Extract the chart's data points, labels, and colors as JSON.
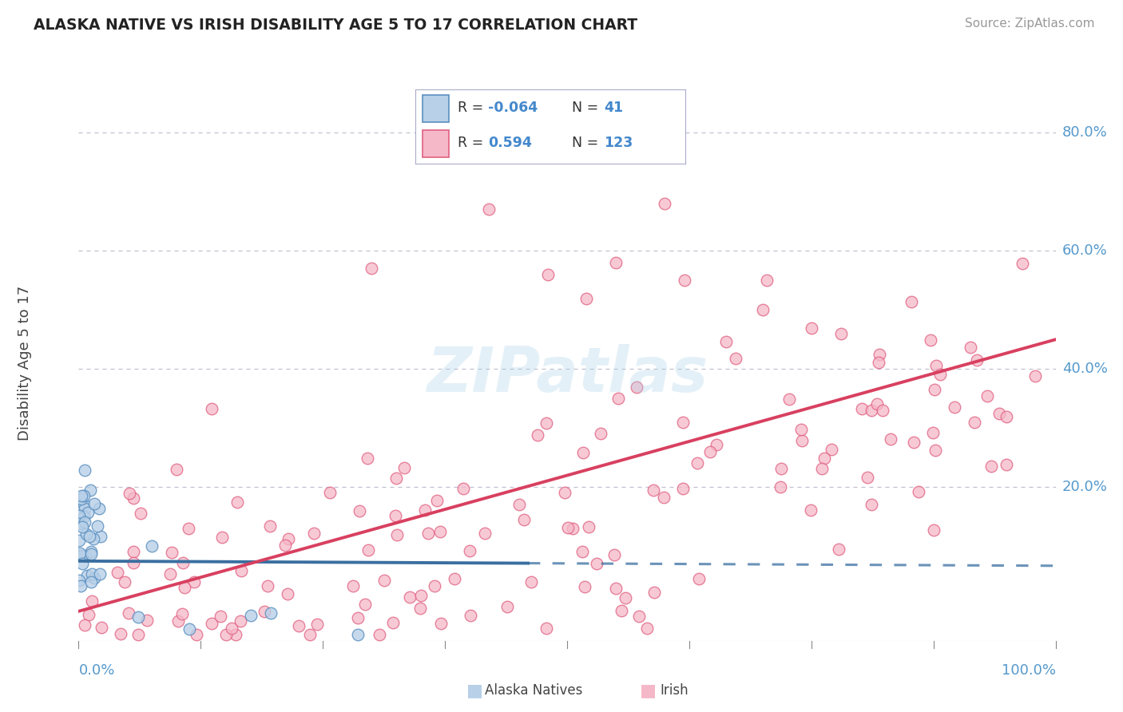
{
  "title": "ALASKA NATIVE VS IRISH DISABILITY AGE 5 TO 17 CORRELATION CHART",
  "source": "Source: ZipAtlas.com",
  "ylabel": "Disability Age 5 to 17",
  "ytick_labels": [
    "20.0%",
    "40.0%",
    "60.0%",
    "80.0%"
  ],
  "ytick_values": [
    0.2,
    0.4,
    0.6,
    0.8
  ],
  "r_alaska": -0.064,
  "n_alaska": 41,
  "r_irish": 0.594,
  "n_irish": 123,
  "color_alaska_fill": "#b8d0e8",
  "color_alaska_edge": "#5a8fc0",
  "color_irish_fill": "#f5b8c8",
  "color_irish_edge": "#e06080",
  "color_alaska_line": "#3a6fa0",
  "color_irish_line": "#d84060",
  "background_color": "#ffffff",
  "grid_color": "#c0c0d0",
  "xlim": [
    0.0,
    1.0
  ],
  "ylim": [
    -0.06,
    0.88
  ]
}
